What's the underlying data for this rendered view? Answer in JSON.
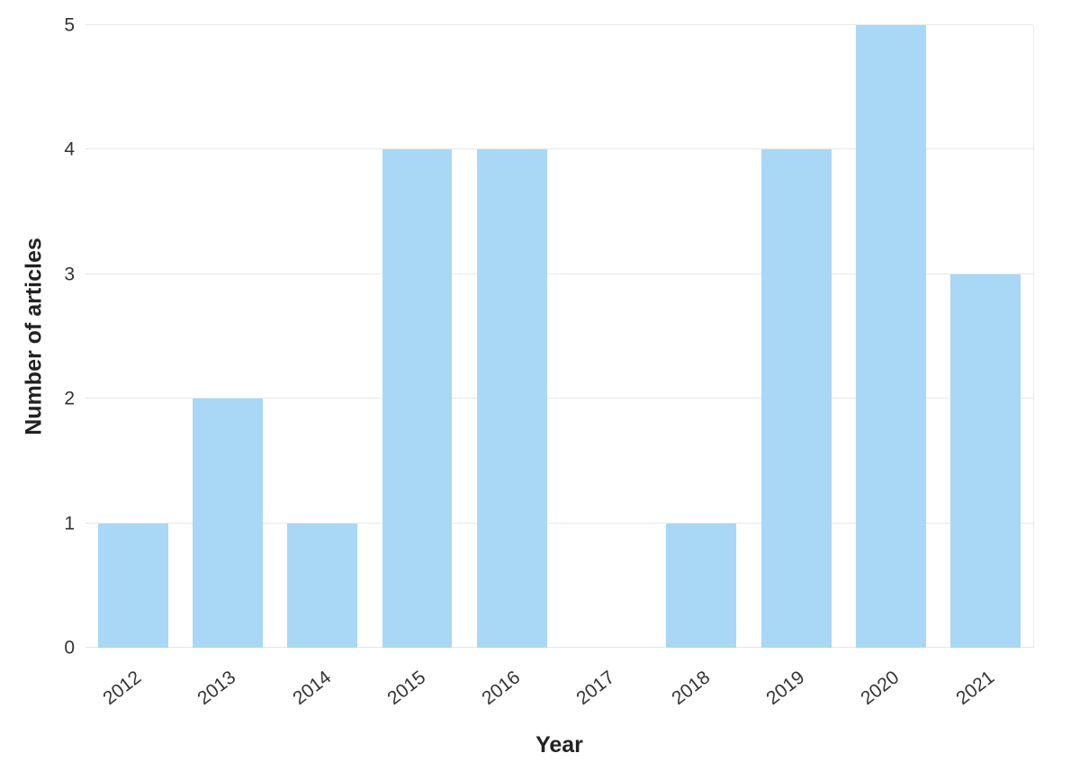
{
  "chart_data": {
    "type": "bar",
    "title": "",
    "categories": [
      "2012",
      "2013",
      "2014",
      "2015",
      "2016",
      "2017",
      "2018",
      "2019",
      "2020",
      "2021"
    ],
    "values": [
      1,
      2,
      1,
      4,
      4,
      0,
      1,
      4,
      5,
      3
    ],
    "xlabel": "Year",
    "ylabel": "Number of articles",
    "ylim": [
      0,
      5
    ],
    "yticks": [
      0,
      1,
      2,
      3,
      4,
      5
    ],
    "bar_color": "#a8d8f5",
    "grid": "horizontal",
    "legend": "none",
    "background_color": "#ffffff"
  }
}
